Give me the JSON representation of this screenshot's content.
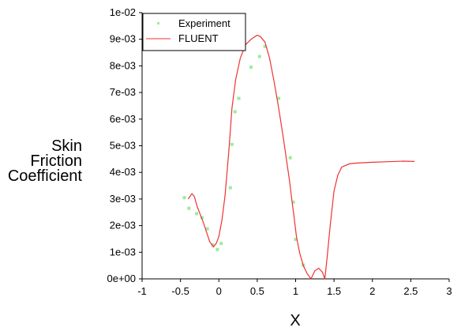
{
  "chart_data": {
    "type": "scatter",
    "title": "",
    "xlabel": "X",
    "ylabel": [
      "Skin",
      "Friction",
      "Coefficient"
    ],
    "xlim": [
      -1,
      3
    ],
    "ylim": [
      0,
      0.01
    ],
    "xticks": [
      -1,
      -0.5,
      0,
      0.5,
      1,
      1.5,
      2,
      2.5,
      3
    ],
    "xtick_labels": [
      "-1",
      "-0.5",
      "0",
      "0.5",
      "1",
      "1.5",
      "2",
      "2.5",
      "3"
    ],
    "yticks": [
      0,
      0.001,
      0.002,
      0.003,
      0.004,
      0.005,
      0.006,
      0.007,
      0.008,
      0.009,
      0.01
    ],
    "ytick_labels": [
      "0e+00",
      "1e-03",
      "2e-03",
      "3e-03",
      "4e-03",
      "5e-03",
      "6e-03",
      "7e-03",
      "8e-03",
      "9e-03",
      "1e-02"
    ],
    "grid": false,
    "legend_position": "top-left",
    "series": [
      {
        "name": "Experiment",
        "kind": "markers",
        "color": "#99ee99",
        "x": [
          -0.45,
          -0.39,
          -0.29,
          -0.22,
          -0.15,
          -0.08,
          -0.02,
          0.03,
          0.15,
          0.17,
          0.21,
          0.26,
          0.42,
          0.53,
          0.6,
          0.78,
          0.93,
          0.97,
          1.0,
          1.1
        ],
        "y": [
          0.00305,
          0.00265,
          0.00245,
          0.0023,
          0.00188,
          0.00128,
          0.0011,
          0.00133,
          0.00342,
          0.00505,
          0.00628,
          0.00678,
          0.00795,
          0.00835,
          0.00873,
          0.00678,
          0.00455,
          0.00288,
          0.00148,
          0.00052
        ]
      },
      {
        "name": "FLUENT",
        "kind": "line",
        "color": "#ee3333",
        "x": [
          -0.4,
          -0.35,
          -0.32,
          -0.28,
          -0.2,
          -0.12,
          -0.07,
          -0.03,
          0.0,
          0.04,
          0.08,
          0.13,
          0.17,
          0.22,
          0.28,
          0.35,
          0.42,
          0.47,
          0.5,
          0.54,
          0.6,
          0.66,
          0.72,
          0.78,
          0.84,
          0.88,
          0.92,
          0.95,
          0.98,
          1.01,
          1.05,
          1.1,
          1.15,
          1.2,
          1.25,
          1.3,
          1.35,
          1.38,
          1.41,
          1.45,
          1.5,
          1.55,
          1.6,
          1.7,
          1.8,
          2.0,
          2.2,
          2.4,
          2.55
        ],
        "y": [
          0.003,
          0.0032,
          0.0031,
          0.0027,
          0.0021,
          0.0014,
          0.0012,
          0.00135,
          0.0016,
          0.0022,
          0.0031,
          0.0048,
          0.0064,
          0.0075,
          0.0083,
          0.0088,
          0.009,
          0.0091,
          0.00915,
          0.0091,
          0.0089,
          0.0083,
          0.0074,
          0.0064,
          0.0053,
          0.0045,
          0.0037,
          0.003,
          0.0023,
          0.0016,
          0.001,
          0.0005,
          0.0002,
          0.0,
          0.0003,
          0.0004,
          0.00025,
          0.0,
          0.0008,
          0.002,
          0.0033,
          0.0039,
          0.0042,
          0.00432,
          0.00435,
          0.00438,
          0.0044,
          0.00442,
          0.00441
        ]
      }
    ]
  }
}
